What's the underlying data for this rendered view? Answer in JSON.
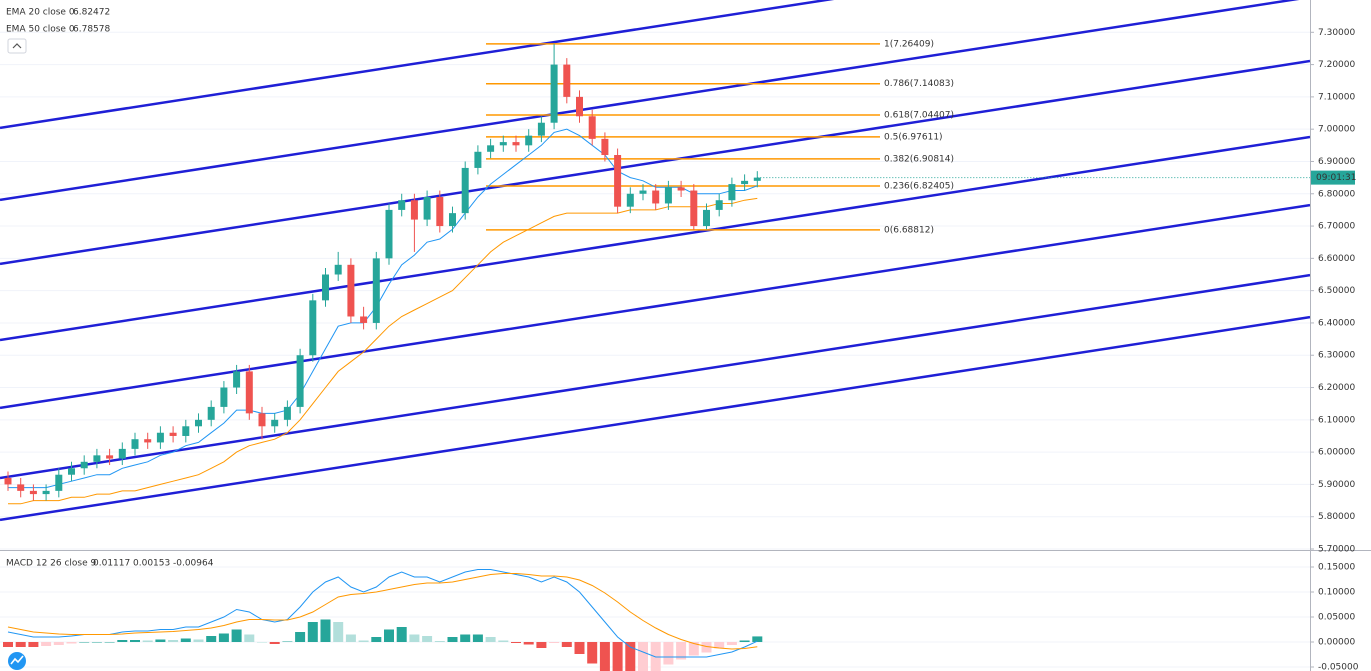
{
  "chart_data": {
    "type": "candlestick",
    "ylim": [
      5.7,
      7.4
    ],
    "yticks": [
      {
        "value": 7.3,
        "label": "7.30000"
      },
      {
        "value": 7.2,
        "label": "7.20000"
      },
      {
        "value": 7.1,
        "label": "7.10000"
      },
      {
        "value": 7.0,
        "label": "7.00000"
      },
      {
        "value": 6.9,
        "label": "6.90000"
      },
      {
        "value": 6.8,
        "label": "6.80000"
      },
      {
        "value": 6.7,
        "label": "6.70000"
      },
      {
        "value": 6.6,
        "label": "6.60000"
      },
      {
        "value": 6.5,
        "label": "6.50000"
      },
      {
        "value": 6.4,
        "label": "6.40000"
      },
      {
        "value": 6.3,
        "label": "6.30000"
      },
      {
        "value": 6.2,
        "label": "6.20000"
      },
      {
        "value": 6.1,
        "label": "6.10000"
      },
      {
        "value": 6.0,
        "label": "6.00000"
      },
      {
        "value": 5.9,
        "label": "5.90000"
      },
      {
        "value": 5.8,
        "label": "5.80000"
      },
      {
        "value": 5.7,
        "label": "5.70000"
      }
    ],
    "up_color": "#26a69a",
    "down_color": "#ef5350",
    "candles": [
      [
        5.92,
        5.94,
        5.88,
        5.9
      ],
      [
        5.9,
        5.92,
        5.86,
        5.88
      ],
      [
        5.88,
        5.9,
        5.85,
        5.87
      ],
      [
        5.87,
        5.9,
        5.85,
        5.88
      ],
      [
        5.88,
        5.95,
        5.86,
        5.93
      ],
      [
        5.93,
        5.97,
        5.91,
        5.95
      ],
      [
        5.95,
        5.99,
        5.93,
        5.97
      ],
      [
        5.97,
        6.01,
        5.95,
        5.99
      ],
      [
        5.99,
        6.01,
        5.96,
        5.98
      ],
      [
        5.98,
        6.03,
        5.96,
        6.01
      ],
      [
        6.01,
        6.06,
        5.99,
        6.04
      ],
      [
        6.04,
        6.06,
        6.01,
        6.03
      ],
      [
        6.03,
        6.08,
        6.01,
        6.06
      ],
      [
        6.06,
        6.08,
        6.03,
        6.05
      ],
      [
        6.05,
        6.1,
        6.03,
        6.08
      ],
      [
        6.08,
        6.12,
        6.06,
        6.1
      ],
      [
        6.1,
        6.16,
        6.08,
        6.14
      ],
      [
        6.14,
        6.22,
        6.12,
        6.2
      ],
      [
        6.2,
        6.27,
        6.18,
        6.25
      ],
      [
        6.25,
        6.27,
        6.1,
        6.12
      ],
      [
        6.12,
        6.14,
        6.04,
        6.08
      ],
      [
        6.08,
        6.12,
        6.06,
        6.1
      ],
      [
        6.1,
        6.16,
        6.08,
        6.14
      ],
      [
        6.14,
        6.32,
        6.12,
        6.3
      ],
      [
        6.3,
        6.49,
        6.28,
        6.47
      ],
      [
        6.47,
        6.57,
        6.45,
        6.55
      ],
      [
        6.55,
        6.62,
        6.53,
        6.58
      ],
      [
        6.58,
        6.6,
        6.4,
        6.42
      ],
      [
        6.42,
        6.45,
        6.38,
        6.4
      ],
      [
        6.4,
        6.62,
        6.38,
        6.6
      ],
      [
        6.6,
        6.77,
        6.58,
        6.75
      ],
      [
        6.75,
        6.8,
        6.73,
        6.78
      ],
      [
        6.78,
        6.8,
        6.62,
        6.72
      ],
      [
        6.72,
        6.81,
        6.7,
        6.79
      ],
      [
        6.79,
        6.81,
        6.68,
        6.7
      ],
      [
        6.7,
        6.76,
        6.68,
        6.74
      ],
      [
        6.74,
        6.9,
        6.72,
        6.88
      ],
      [
        6.88,
        6.95,
        6.86,
        6.93
      ],
      [
        6.93,
        6.97,
        6.91,
        6.95
      ],
      [
        6.95,
        6.98,
        6.93,
        6.96
      ],
      [
        6.96,
        6.98,
        6.93,
        6.95
      ],
      [
        6.95,
        7.0,
        6.93,
        6.98
      ],
      [
        6.98,
        7.04,
        6.96,
        7.02
      ],
      [
        7.02,
        7.26409,
        7.0,
        7.2
      ],
      [
        7.2,
        7.22,
        7.08,
        7.1
      ],
      [
        7.1,
        7.12,
        7.02,
        7.04
      ],
      [
        7.04,
        7.06,
        6.95,
        6.97
      ],
      [
        6.97,
        6.99,
        6.9,
        6.92
      ],
      [
        6.92,
        6.94,
        6.74,
        6.76
      ],
      [
        6.76,
        6.82,
        6.74,
        6.8
      ],
      [
        6.8,
        6.83,
        6.78,
        6.81
      ],
      [
        6.81,
        6.83,
        6.75,
        6.77
      ],
      [
        6.77,
        6.84,
        6.75,
        6.82
      ],
      [
        6.82,
        6.84,
        6.79,
        6.81
      ],
      [
        6.81,
        6.83,
        6.68812,
        6.7
      ],
      [
        6.7,
        6.77,
        6.69,
        6.75
      ],
      [
        6.75,
        6.8,
        6.73,
        6.78
      ],
      [
        6.78,
        6.85,
        6.76,
        6.83
      ],
      [
        6.83,
        6.86,
        6.81,
        6.84
      ],
      [
        6.84,
        6.87,
        6.82,
        6.85
      ]
    ],
    "series": [
      {
        "name": "EMA 20 close 0",
        "color": "#2196f3",
        "values": [
          5.89,
          5.89,
          5.89,
          5.89,
          5.9,
          5.91,
          5.92,
          5.93,
          5.93,
          5.95,
          5.96,
          5.97,
          5.99,
          6.0,
          6.02,
          6.03,
          6.06,
          6.09,
          6.13,
          6.13,
          6.12,
          6.12,
          6.13,
          6.18,
          6.25,
          6.32,
          6.39,
          6.4,
          6.4,
          6.45,
          6.52,
          6.58,
          6.61,
          6.65,
          6.66,
          6.69,
          6.74,
          6.79,
          6.83,
          6.86,
          6.89,
          6.92,
          6.95,
          6.99,
          7.0,
          6.98,
          6.95,
          6.92,
          6.87,
          6.85,
          6.84,
          6.82,
          6.82,
          6.82,
          6.8,
          6.8,
          6.8,
          6.81,
          6.81,
          6.82472
        ]
      },
      {
        "name": "EMA 50 close 0",
        "color": "#ff9800",
        "values": [
          5.84,
          5.84,
          5.85,
          5.85,
          5.85,
          5.86,
          5.86,
          5.87,
          5.87,
          5.88,
          5.88,
          5.89,
          5.9,
          5.91,
          5.92,
          5.93,
          5.95,
          5.97,
          6.0,
          6.02,
          6.03,
          6.04,
          6.06,
          6.1,
          6.15,
          6.2,
          6.25,
          6.28,
          6.31,
          6.35,
          6.39,
          6.42,
          6.44,
          6.46,
          6.48,
          6.5,
          6.54,
          6.58,
          6.62,
          6.65,
          6.67,
          6.69,
          6.71,
          6.73,
          6.74,
          6.74,
          6.74,
          6.74,
          6.74,
          6.75,
          6.75,
          6.75,
          6.76,
          6.76,
          6.76,
          6.76,
          6.77,
          6.77,
          6.78,
          6.78578
        ]
      }
    ],
    "fib": {
      "color": "#ff9800",
      "levels": [
        {
          "label": "1(7.26409)",
          "value": 7.26409
        },
        {
          "label": "0.786(7.14083)",
          "value": 7.14083
        },
        {
          "label": "0.618(7.04407)",
          "value": 7.04407
        },
        {
          "label": "0.5(6.97611)",
          "value": 6.97611
        },
        {
          "label": "0.382(6.90814)",
          "value": 6.90814
        },
        {
          "label": "0.236(6.82405)",
          "value": 6.82405
        },
        {
          "label": "0(6.68812)",
          "value": 6.68812
        }
      ]
    },
    "channel": {
      "color": "#1f1fd6",
      "lines": [
        [
          7.004,
          7.632
        ],
        [
          6.781,
          7.409
        ],
        [
          6.583,
          7.211
        ],
        [
          6.347,
          6.976
        ],
        [
          6.137,
          6.765
        ],
        [
          5.92,
          6.548
        ],
        [
          5.79,
          6.418
        ]
      ]
    },
    "countdown": "09:01:31",
    "macd": {
      "title": "MACD 12 26 close 9",
      "ylim": [
        -0.058,
        0.182
      ],
      "yticks": [
        {
          "value": 0.15,
          "label": "0.15000"
        },
        {
          "value": 0.1,
          "label": "0.10000"
        },
        {
          "value": 0.05,
          "label": "0.05000"
        },
        {
          "value": 0,
          "label": "0.00000"
        },
        {
          "value": -0.05,
          "label": "-0.05000"
        }
      ],
      "histogram": {
        "color": "#26a69a",
        "values": [
          -0.01,
          -0.01,
          -0.01,
          -0.008,
          -0.006,
          -0.003,
          0,
          0,
          0,
          0.004,
          0.004,
          0.003,
          0.005,
          0.004,
          0.007,
          0.005,
          0.012,
          0.017,
          0.025,
          0.015,
          0,
          -0.004,
          0.001,
          0.02,
          0.04,
          0.045,
          0.04,
          0.015,
          0.003,
          0.01,
          0.025,
          0.03,
          0.015,
          0.012,
          0.002,
          0.01,
          0.015,
          0.015,
          0.01,
          0.003,
          -0.002,
          -0.005,
          -0.012,
          -0.002,
          -0.01,
          -0.024,
          -0.043,
          -0.058,
          -0.07,
          -0.07,
          -0.063,
          -0.058,
          -0.045,
          -0.035,
          -0.027,
          -0.021,
          -0.013,
          -0.006,
          0.003,
          0.01117
        ]
      },
      "series": [
        {
          "color": "#2196f3",
          "values": [
            0.02,
            0.015,
            0.01,
            0.01,
            0.01,
            0.012,
            0.015,
            0.015,
            0.015,
            0.02,
            0.022,
            0.022,
            0.025,
            0.025,
            0.03,
            0.03,
            0.04,
            0.05,
            0.065,
            0.06,
            0.045,
            0.04,
            0.045,
            0.07,
            0.1,
            0.12,
            0.13,
            0.11,
            0.1,
            0.11,
            0.13,
            0.14,
            0.13,
            0.13,
            0.12,
            0.13,
            0.14,
            0.145,
            0.145,
            0.14,
            0.135,
            0.13,
            0.12,
            0.13,
            0.12,
            0.1,
            0.07,
            0.04,
            0.01,
            -0.01,
            -0.02,
            -0.03,
            -0.03,
            -0.03,
            -0.03,
            -0.03,
            -0.025,
            -0.02,
            -0.01,
            0.00153
          ]
        },
        {
          "color": "#ff9800",
          "values": [
            0.03,
            0.025,
            0.02,
            0.018,
            0.016,
            0.015,
            0.015,
            0.015,
            0.015,
            0.016,
            0.018,
            0.019,
            0.02,
            0.021,
            0.023,
            0.025,
            0.028,
            0.033,
            0.04,
            0.045,
            0.045,
            0.044,
            0.044,
            0.05,
            0.06,
            0.075,
            0.09,
            0.095,
            0.097,
            0.1,
            0.105,
            0.11,
            0.115,
            0.118,
            0.118,
            0.12,
            0.125,
            0.13,
            0.135,
            0.137,
            0.137,
            0.135,
            0.132,
            0.132,
            0.13,
            0.124,
            0.113,
            0.098,
            0.08,
            0.06,
            0.043,
            0.028,
            0.015,
            0.005,
            -0.003,
            -0.009,
            -0.012,
            -0.014,
            -0.013,
            -0.00964
          ]
        }
      ]
    }
  }
}
